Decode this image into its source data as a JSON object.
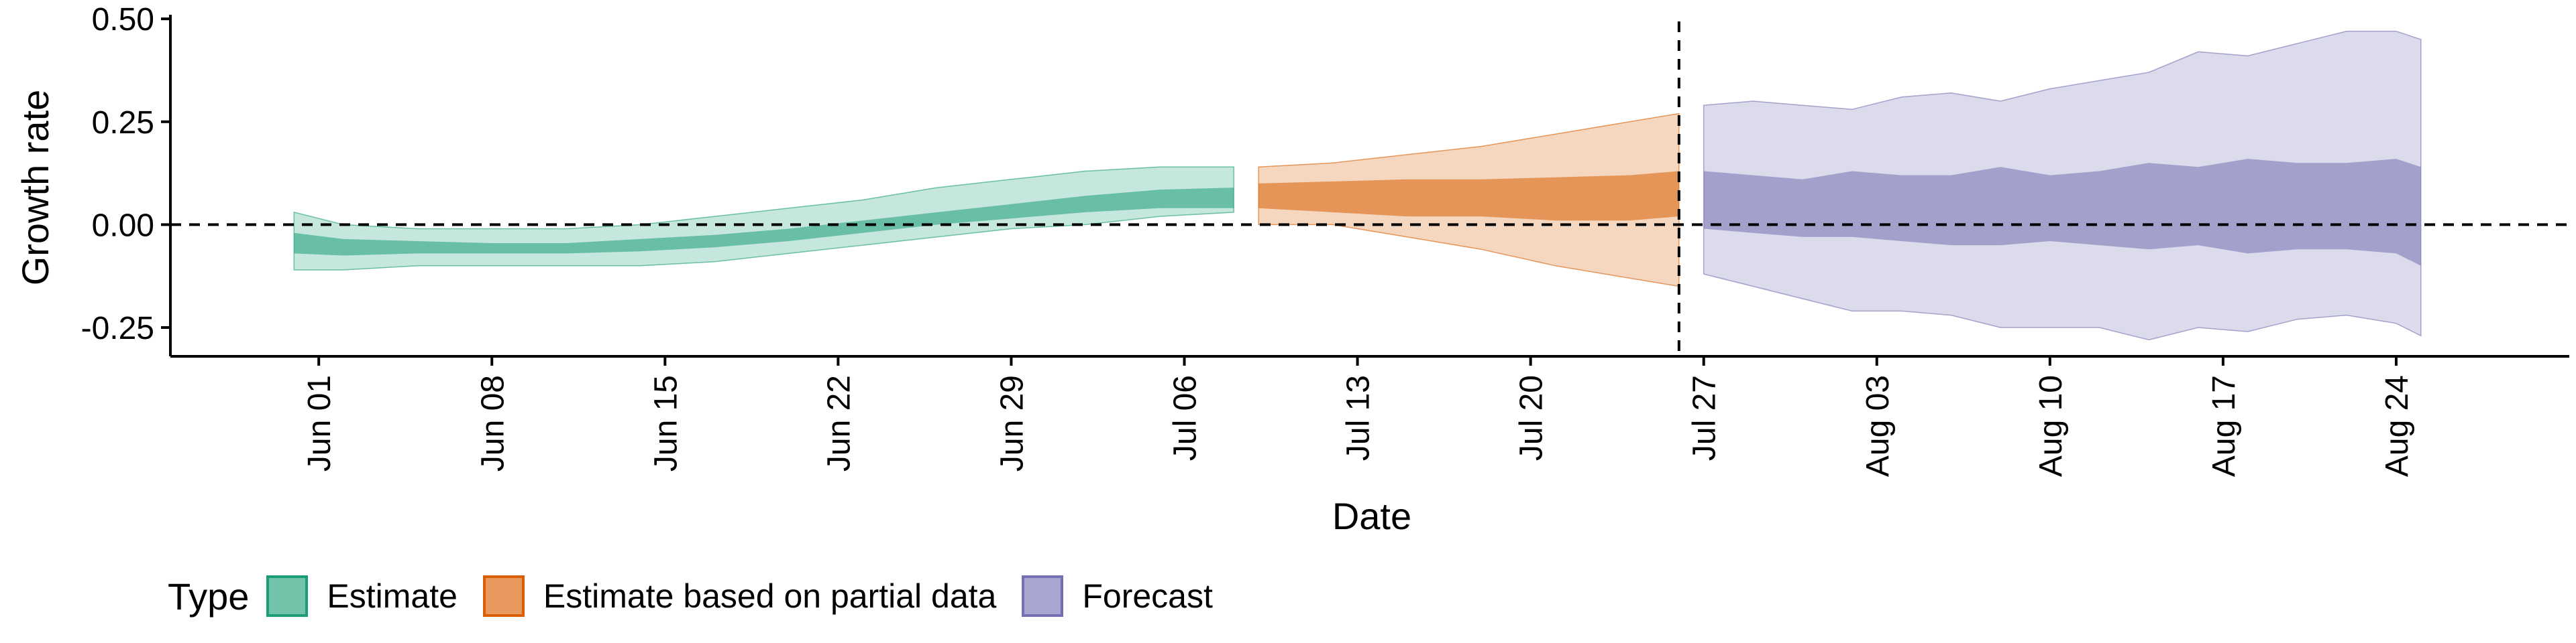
{
  "chart_data": {
    "type": "area",
    "xlabel": "Date",
    "ylabel": "Growth rate",
    "ylim": [
      -0.32,
      0.51
    ],
    "y_ticks": [
      0.5,
      0.25,
      0.0,
      -0.25
    ],
    "y_tick_labels": [
      "0.50",
      "0.25",
      "0.00",
      "-0.25"
    ],
    "x_ticks": [
      "2020-06-01",
      "2020-06-08",
      "2020-06-15",
      "2020-06-22",
      "2020-06-29",
      "2020-07-06",
      "2020-07-13",
      "2020-07-20",
      "2020-07-27",
      "2020-08-03",
      "2020-08-10",
      "2020-08-17",
      "2020-08-24"
    ],
    "x_tick_labels": [
      "Jun 01",
      "Jun 08",
      "Jun 15",
      "Jun 22",
      "Jun 29",
      "Jul 06",
      "Jul 13",
      "Jul 20",
      "Jul 27",
      "Aug 03",
      "Aug 10",
      "Aug 17",
      "Aug 24"
    ],
    "xlim": [
      "2020-05-26",
      "2020-08-31"
    ],
    "reference_lines": {
      "horizontal_y": 0.0,
      "vertical_x": "2020-07-26"
    },
    "legend": {
      "title": "Type",
      "position": "bottom-left"
    },
    "grid": false,
    "series": [
      {
        "name": "Estimate",
        "color": "#1b9e77",
        "dates": [
          "2020-05-31",
          "2020-06-02",
          "2020-06-05",
          "2020-06-08",
          "2020-06-11",
          "2020-06-14",
          "2020-06-17",
          "2020-06-20",
          "2020-06-23",
          "2020-06-26",
          "2020-06-29",
          "2020-07-02",
          "2020-07-05",
          "2020-07-08"
        ],
        "lower90": [
          -0.11,
          -0.11,
          -0.1,
          -0.1,
          -0.1,
          -0.1,
          -0.09,
          -0.07,
          -0.05,
          -0.03,
          -0.01,
          0.0,
          0.02,
          0.03
        ],
        "lower50": [
          -0.07,
          -0.075,
          -0.07,
          -0.07,
          -0.07,
          -0.065,
          -0.055,
          -0.04,
          -0.02,
          0.0,
          0.015,
          0.03,
          0.04,
          0.04
        ],
        "upper50": [
          -0.02,
          -0.035,
          -0.04,
          -0.045,
          -0.045,
          -0.035,
          -0.025,
          -0.01,
          0.01,
          0.03,
          0.05,
          0.07,
          0.085,
          0.09
        ],
        "upper90": [
          0.03,
          0.0,
          -0.01,
          -0.01,
          -0.01,
          0.0,
          0.02,
          0.04,
          0.06,
          0.09,
          0.11,
          0.13,
          0.14,
          0.14
        ]
      },
      {
        "name": "Estimate based on partial data",
        "color": "#d95f02",
        "dates": [
          "2020-07-09",
          "2020-07-12",
          "2020-07-15",
          "2020-07-18",
          "2020-07-21",
          "2020-07-24",
          "2020-07-26"
        ],
        "lower90": [
          0.0,
          0.0,
          -0.03,
          -0.06,
          -0.1,
          -0.13,
          -0.15
        ],
        "lower50": [
          0.04,
          0.03,
          0.02,
          0.02,
          0.01,
          0.01,
          0.02
        ],
        "upper50": [
          0.1,
          0.105,
          0.11,
          0.11,
          0.115,
          0.12,
          0.13
        ],
        "upper90": [
          0.14,
          0.15,
          0.17,
          0.19,
          0.22,
          0.25,
          0.27
        ]
      },
      {
        "name": "Forecast",
        "color": "#7570b3",
        "dates": [
          "2020-07-27",
          "2020-07-29",
          "2020-07-31",
          "2020-08-02",
          "2020-08-04",
          "2020-08-06",
          "2020-08-08",
          "2020-08-10",
          "2020-08-12",
          "2020-08-14",
          "2020-08-16",
          "2020-08-18",
          "2020-08-20",
          "2020-08-22",
          "2020-08-24",
          "2020-08-25"
        ],
        "lower90": [
          -0.12,
          -0.15,
          -0.18,
          -0.21,
          -0.21,
          -0.22,
          -0.25,
          -0.25,
          -0.25,
          -0.28,
          -0.25,
          -0.26,
          -0.23,
          -0.22,
          -0.24,
          -0.27
        ],
        "lower50": [
          -0.01,
          -0.02,
          -0.03,
          -0.03,
          -0.04,
          -0.05,
          -0.05,
          -0.04,
          -0.05,
          -0.06,
          -0.05,
          -0.07,
          -0.06,
          -0.06,
          -0.07,
          -0.1
        ],
        "upper50": [
          0.13,
          0.12,
          0.11,
          0.13,
          0.12,
          0.12,
          0.14,
          0.12,
          0.13,
          0.15,
          0.14,
          0.16,
          0.15,
          0.15,
          0.16,
          0.14
        ],
        "upper90": [
          0.29,
          0.3,
          0.29,
          0.28,
          0.31,
          0.32,
          0.3,
          0.33,
          0.35,
          0.37,
          0.42,
          0.41,
          0.44,
          0.47,
          0.47,
          0.45
        ]
      }
    ]
  }
}
